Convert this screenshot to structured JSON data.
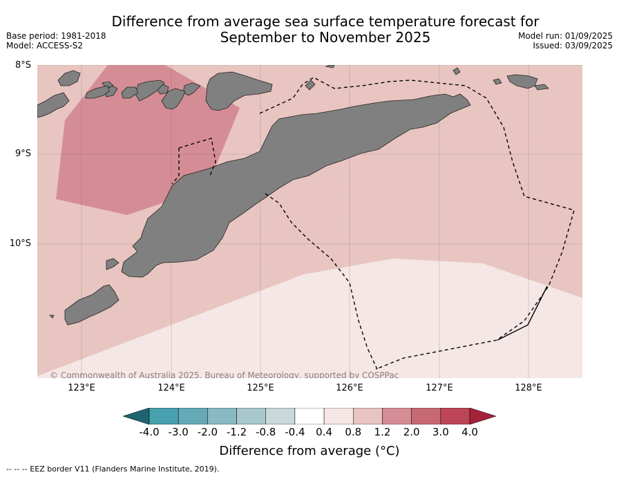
{
  "title": {
    "line1": "Difference from average sea surface temperature forecast for",
    "line2": "September to November 2025"
  },
  "meta_left": {
    "base_period": "Base period: 1981-2018",
    "model": "Model: ACCESS-S2"
  },
  "meta_right": {
    "model_run": "Model run: 01/09/2025",
    "issued": "Issued: 03/09/2025"
  },
  "map": {
    "lat_labels": [
      "8°S",
      "9°S",
      "10°S"
    ],
    "lon_labels": [
      "123°E",
      "124°E",
      "125°E",
      "126°E",
      "127°E",
      "128°E"
    ],
    "copyright": "© Commonwealth of Australia 2025, Bureau of Meteorology, supported by COSPPac",
    "colors": {
      "anomaly_0_8_to_1_2": "#e8c5c0",
      "anomaly_1_2_to_2_0": "#d58d95",
      "anomaly_0_4_to_0_8": "#f4e7e5",
      "land": "#808080"
    }
  },
  "colorbar": {
    "tick_labels": [
      "-4.0",
      "-3.0",
      "-2.0",
      "-1.2",
      "-0.8",
      "-0.4",
      "0.4",
      "0.8",
      "1.2",
      "2.0",
      "3.0",
      "4.0"
    ],
    "colors": [
      "#1d6470",
      "#47a0ad",
      "#65a9b7",
      "#89b9c3",
      "#a8c8cc",
      "#c9d8d8",
      "#ffffff",
      "#f4e7e5",
      "#e8c5c0",
      "#d58d95",
      "#c76973",
      "#bc4556",
      "#a5213c"
    ],
    "title": "Difference from average (°C)"
  },
  "footnote": "-- -- -- EEZ border V11 (Flanders Marine Institute, 2019)."
}
